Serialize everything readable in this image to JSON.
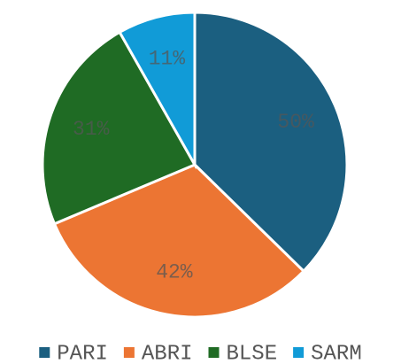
{
  "chart_data": {
    "type": "pie",
    "categories": [
      "PARI",
      "ABRI",
      "BLSE",
      "SARM"
    ],
    "values": [
      50,
      42,
      31,
      11
    ],
    "value_labels": [
      "50%",
      "42%",
      "31%",
      "11%"
    ],
    "colors": [
      "#1b5f80",
      "#ec7533",
      "#1f6b24",
      "#119bd7"
    ],
    "legend": "bottom"
  }
}
